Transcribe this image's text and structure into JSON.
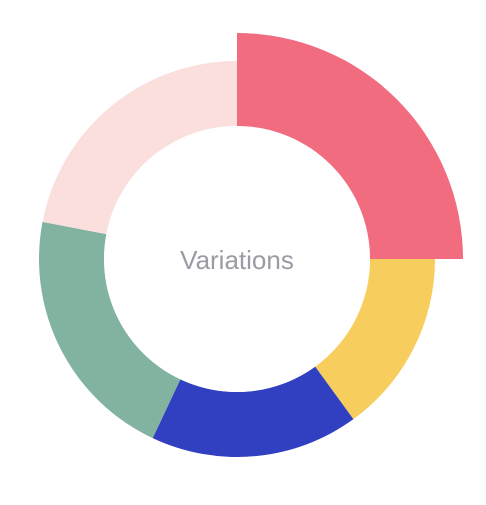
{
  "chart_data": {
    "type": "pie",
    "style": "donut",
    "center_label": "Variations",
    "highlighted_index": 0,
    "slices": [
      {
        "value": 25,
        "color": "#f26c80"
      },
      {
        "value": 15,
        "color": "#f7cd5e"
      },
      {
        "value": 17,
        "color": "#3040c0"
      },
      {
        "value": 21,
        "color": "#82b3a1"
      },
      {
        "value": 22,
        "color": "#fbdfdc"
      }
    ]
  }
}
